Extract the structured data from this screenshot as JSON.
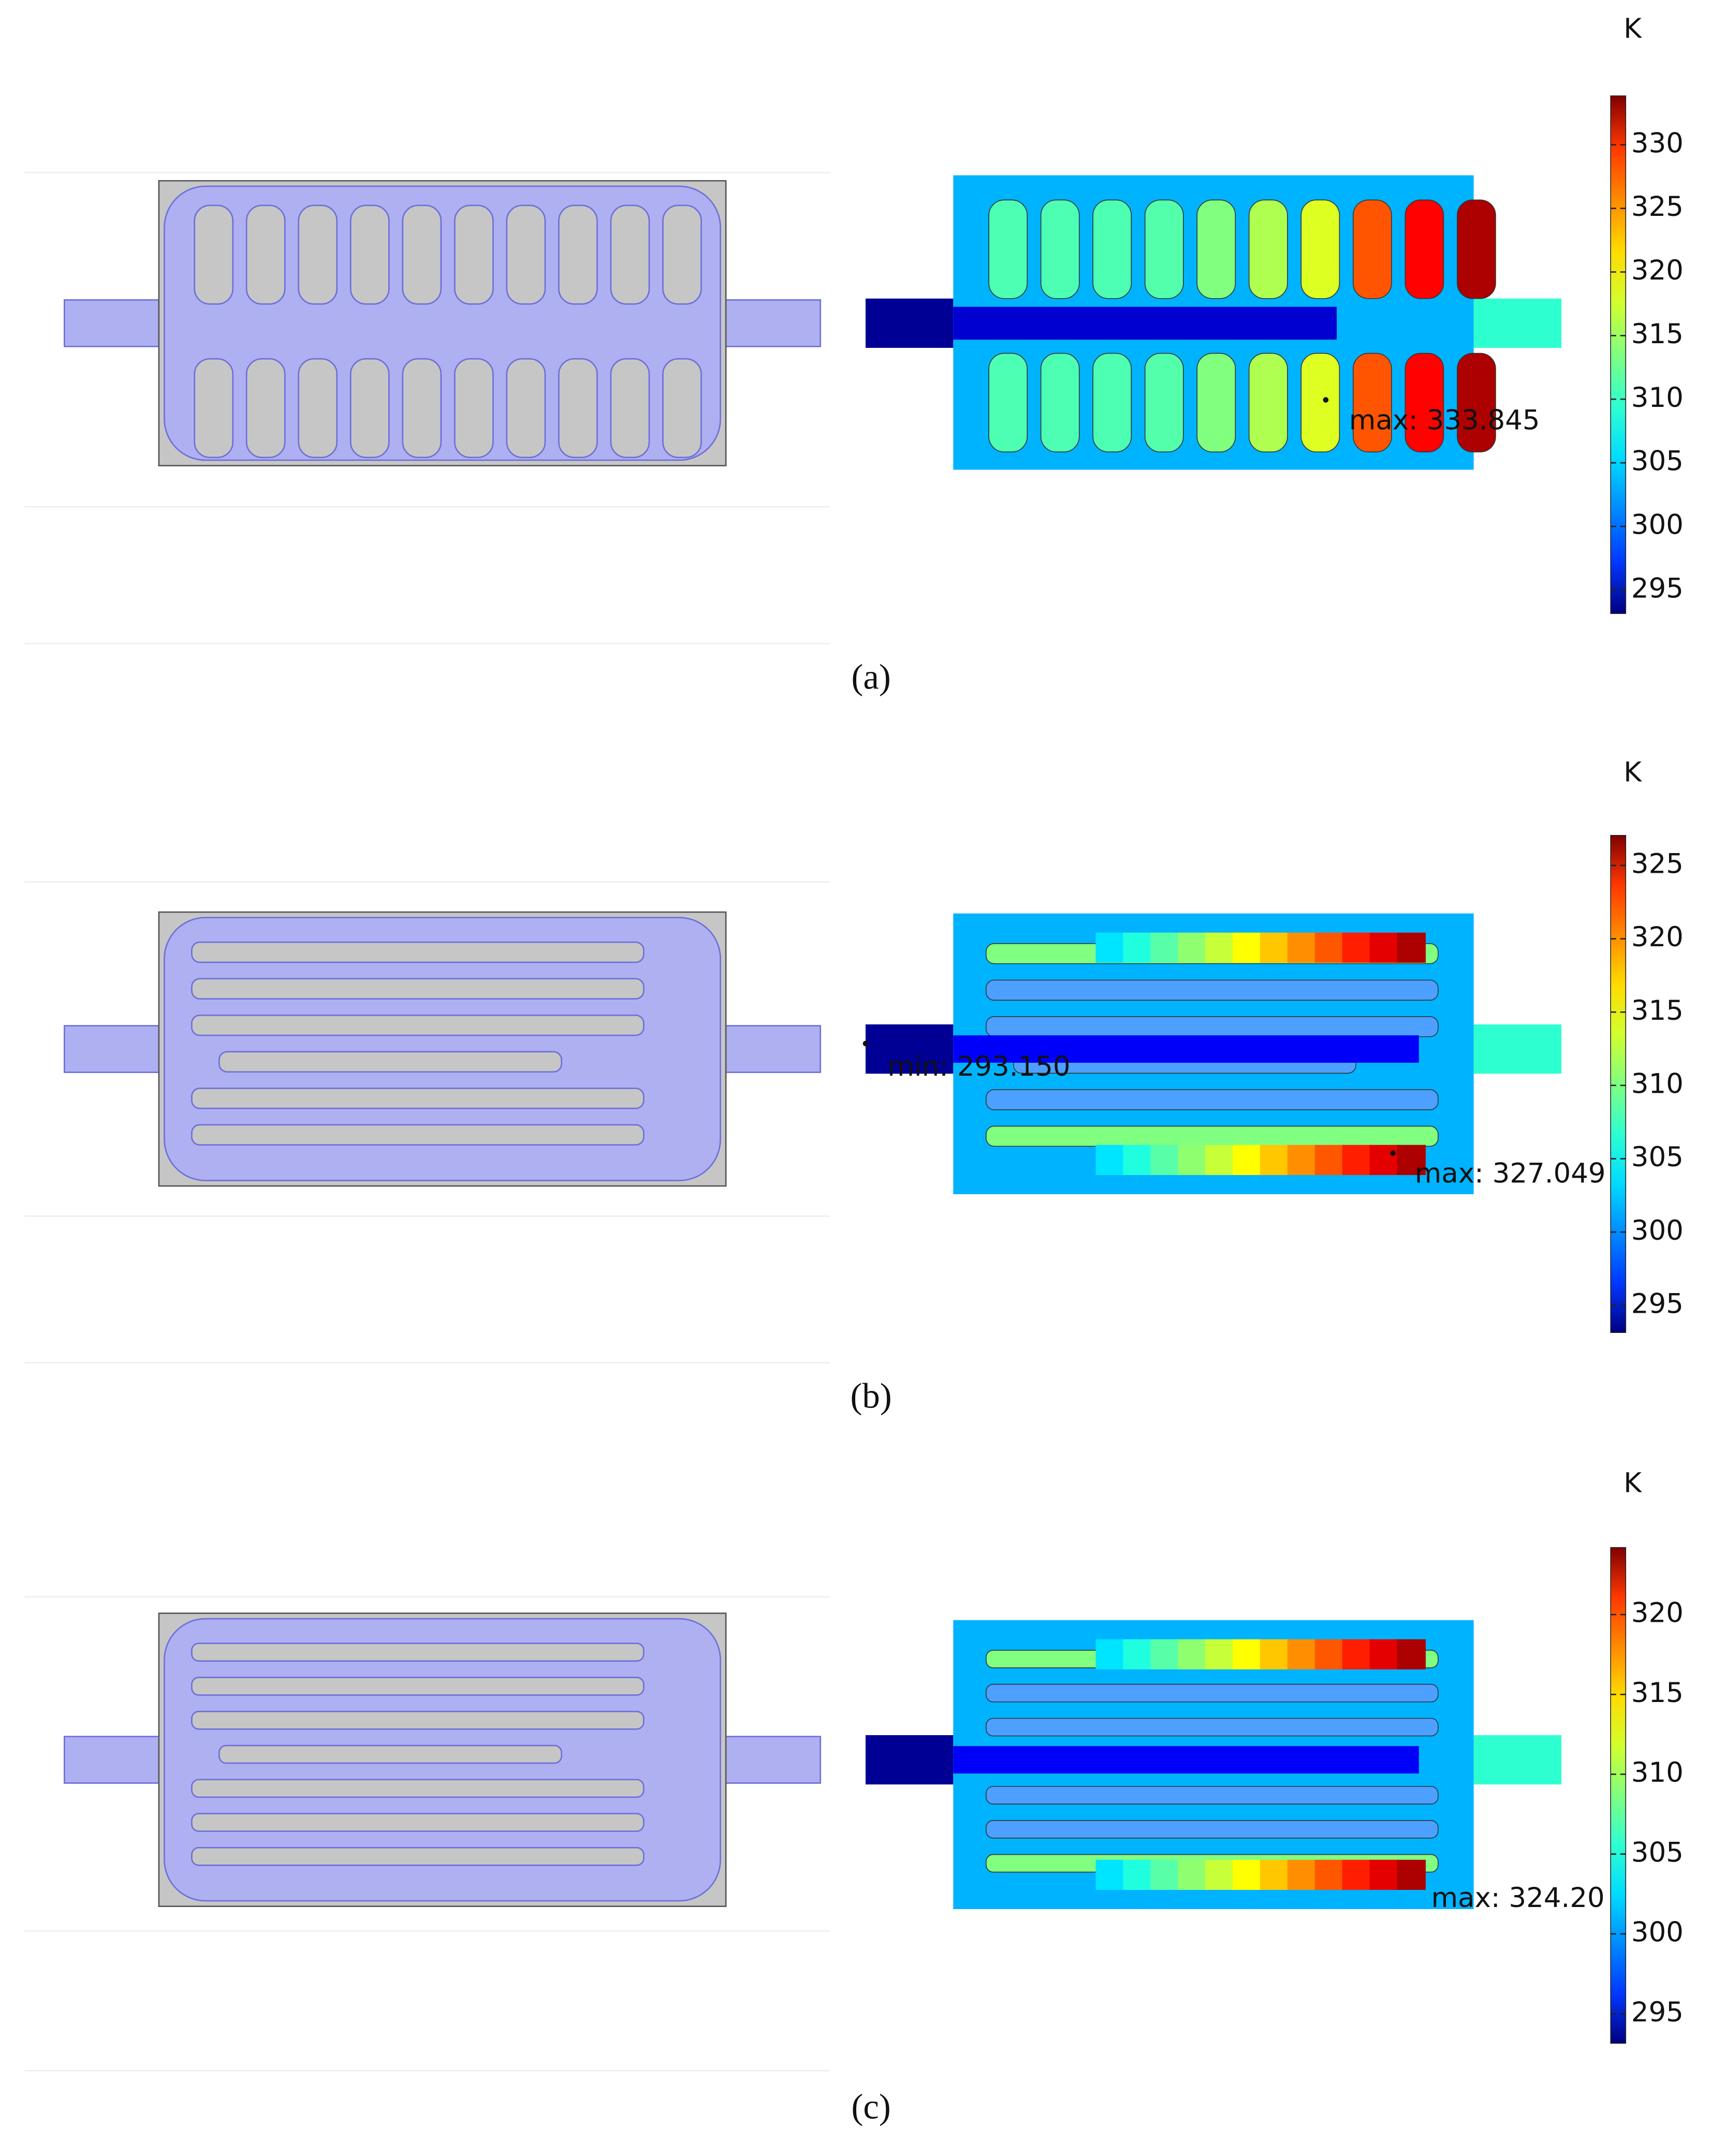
{
  "panels": [
    {
      "label": "(a)",
      "colorbar": {
        "unit": "K",
        "range": [
          293.15,
          333.845
        ],
        "ticks": [
          295,
          300,
          305,
          310,
          315,
          320,
          325,
          330
        ]
      },
      "annotations": [
        "max: 333.845"
      ]
    },
    {
      "label": "(b)",
      "colorbar": {
        "unit": "K",
        "range": [
          293.15,
          327.049
        ],
        "ticks": [
          295,
          300,
          305,
          310,
          315,
          320,
          325
        ]
      },
      "annotations": [
        "min: 293.150",
        "max: 327.049"
      ]
    },
    {
      "label": "(c)",
      "colorbar": {
        "unit": "K",
        "range": [
          293.15,
          324.2
        ],
        "ticks": [
          295,
          300,
          305,
          310,
          315,
          320
        ]
      },
      "annotations": [
        "max: 324.20"
      ]
    }
  ]
}
